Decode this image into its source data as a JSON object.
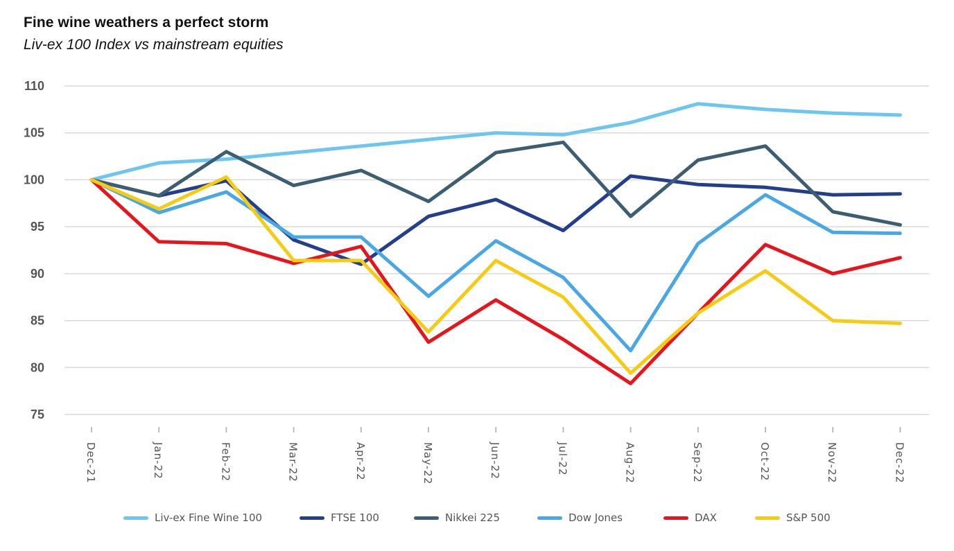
{
  "title": "Fine wine weathers a perfect storm",
  "subtitle": "Liv-ex 100 Index vs mainstream equities",
  "chart_data": {
    "type": "line",
    "title": "Fine wine weathers a perfect storm",
    "subtitle": "Liv-ex 100 Index vs mainstream equities",
    "xlabel": "",
    "ylabel": "",
    "x": [
      "Dec-21",
      "Jan-22",
      "Feb-22",
      "Mar-22",
      "Apr-22",
      "May-22",
      "Jun-22",
      "Jul-22",
      "Aug-22",
      "Sep-22",
      "Oct-22",
      "Nov-22",
      "Dec-22"
    ],
    "yticks": [
      75,
      80,
      85,
      90,
      95,
      100,
      105,
      110
    ],
    "ylim": [
      75,
      110
    ],
    "grid": "horizontal",
    "legend_position": "bottom",
    "series": [
      {
        "name": "Liv-ex Fine Wine 100",
        "color": "#6EC6F0",
        "values": [
          100,
          101.8,
          102.2,
          102.9,
          103.6,
          104.3,
          105.0,
          104.8,
          106.1,
          108.1,
          107.5,
          107.1,
          106.9
        ]
      },
      {
        "name": "FTSE 100",
        "color": "#223E8C",
        "values": [
          100,
          98.3,
          99.9,
          93.6,
          91.0,
          96.1,
          97.9,
          94.6,
          100.4,
          99.5,
          99.2,
          98.4,
          98.5
        ]
      },
      {
        "name": "Nikkei 225",
        "color": "#3D5E72",
        "values": [
          100,
          98.3,
          103.0,
          99.4,
          101.0,
          97.7,
          102.9,
          104.0,
          96.1,
          102.1,
          103.6,
          96.6,
          95.2
        ]
      },
      {
        "name": "Dow Jones",
        "color": "#49A7E6",
        "values": [
          100,
          96.5,
          98.7,
          93.9,
          93.9,
          87.6,
          93.5,
          89.6,
          81.8,
          93.2,
          98.4,
          94.4,
          94.3
        ]
      },
      {
        "name": "DAX",
        "color": "#E8141B",
        "values": [
          100,
          93.4,
          93.2,
          91.1,
          92.9,
          82.7,
          87.2,
          83.0,
          78.3,
          85.8,
          93.1,
          90.0,
          91.7
        ]
      },
      {
        "name": "S&P 500",
        "color": "#F5CB14",
        "values": [
          100,
          96.9,
          100.3,
          91.4,
          91.4,
          83.8,
          91.4,
          87.5,
          79.4,
          85.8,
          90.3,
          85.0,
          84.7
        ]
      }
    ]
  }
}
